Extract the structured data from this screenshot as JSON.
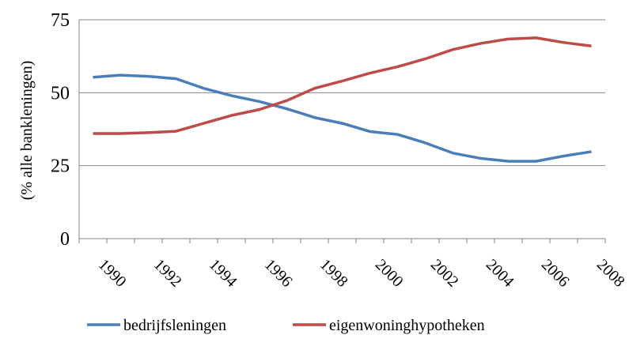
{
  "chart_data": {
    "type": "line",
    "y_label": "(% alle bankleningen)",
    "categories": [
      "1990",
      null,
      "1992",
      null,
      "1994",
      null,
      "1996",
      null,
      "1998",
      null,
      "2000",
      null,
      "2002",
      null,
      "2004",
      null,
      "2006",
      null,
      "2008"
    ],
    "series": [
      {
        "name": "bedrijfsleningen",
        "color": "#4a7ebb",
        "values": [
          55.3,
          56,
          55.6,
          54.8,
          51.5,
          49,
          47,
          44.5,
          41.5,
          39.5,
          36.7,
          35.7,
          32.8,
          29.3,
          27.5,
          26.5,
          26.5,
          28.3,
          29.8
        ]
      },
      {
        "name": "eigenwoninghypotheken",
        "color": "#be4b48",
        "values": [
          36,
          36,
          36.3,
          36.8,
          39.5,
          42.2,
          44.2,
          47.3,
          51.5,
          54,
          56.7,
          58.9,
          61.6,
          64.8,
          66.9,
          68.4,
          68.8,
          67.2,
          66
        ]
      }
    ],
    "ylim": [
      0,
      75
    ],
    "yticks": [
      0,
      25,
      50,
      75
    ],
    "grid": true,
    "legend": "bottom"
  }
}
